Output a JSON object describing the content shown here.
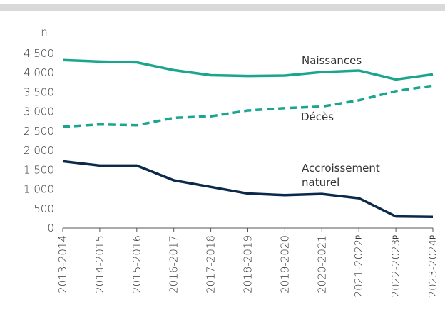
{
  "chart_data": {
    "type": "line",
    "y_label": "n",
    "categories": [
      "2013-2014",
      "2014-2015",
      "2015-2016",
      "2016-2017",
      "2017-2018",
      "2018-2019",
      "2019-2020",
      "2020-2021",
      "2021-2022ᵖ",
      "2022-2023ᵖ",
      "2023-2024ᵖ"
    ],
    "series": [
      {
        "name": "Naissances",
        "color": "#1aa58e",
        "dashed": false,
        "values": [
          4330,
          4290,
          4270,
          4070,
          3940,
          3920,
          3930,
          4020,
          4060,
          3830,
          3960
        ]
      },
      {
        "name": "Décès",
        "color": "#1aa58e",
        "dashed": true,
        "values": [
          2610,
          2670,
          2650,
          2840,
          2880,
          3030,
          3090,
          3130,
          3290,
          3530,
          3670
        ]
      },
      {
        "name": "Accroissement naturel",
        "color": "#0b2a4b",
        "dashed": false,
        "values": [
          1720,
          1610,
          1610,
          1230,
          1060,
          890,
          850,
          880,
          770,
          300,
          290
        ]
      }
    ],
    "ylim": [
      0,
      4500
    ],
    "yticks": [
      0,
      500,
      {
        "value": 1000,
        "label": "1 000"
      },
      {
        "value": 1500,
        "label": "1 500"
      },
      {
        "value": 2000,
        "label": "2 000"
      },
      {
        "value": 2500,
        "label": "2 500"
      },
      {
        "value": 3000,
        "label": "3 000"
      },
      {
        "value": 3500,
        "label": "3 500"
      },
      {
        "value": 4000,
        "label": "4 000"
      },
      {
        "value": 4500,
        "label": "4 500"
      }
    ],
    "grid": false
  }
}
